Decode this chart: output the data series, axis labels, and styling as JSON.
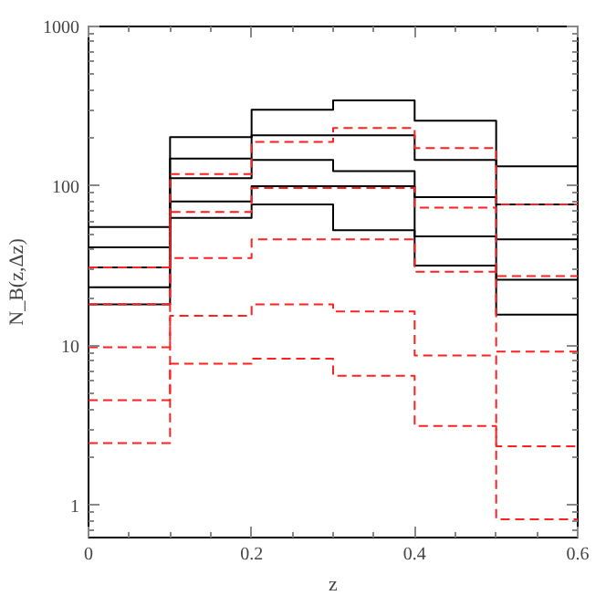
{
  "chart_data": {
    "type": "step",
    "xlabel": "z",
    "ylabel": "N_B(z,Δz)",
    "x": [
      0,
      0.1,
      0.2,
      0.3,
      0.4,
      0.5,
      0.6
    ],
    "xlim": [
      0,
      0.6
    ],
    "xticks": [
      0,
      0.2,
      0.4,
      0.6
    ],
    "ylim": [
      0.63,
      1000
    ],
    "yticks": [
      1,
      10,
      100,
      1000
    ],
    "log": true,
    "grid": false,
    "series": [
      {
        "color": "#000000",
        "line_style": "solid",
        "values": [
          55.4,
          203,
          301,
          344,
          257,
          133,
          133
        ]
      },
      {
        "color": "#000000",
        "line_style": "solid",
        "values": [
          41.4,
          149,
          208,
          208,
          146,
          76.7,
          76.7
        ]
      },
      {
        "color": "#000000",
        "line_style": "solid",
        "values": [
          31,
          112,
          146,
          124,
          85.3,
          46.4,
          46.4
        ]
      },
      {
        "color": "#000000",
        "line_style": "solid",
        "values": [
          23.3,
          80.3,
          100,
          100,
          48.5,
          25.9,
          25.9
        ]
      },
      {
        "color": "#000000",
        "line_style": "solid",
        "values": [
          18.2,
          63.3,
          76.7,
          53,
          31.8,
          15.7,
          15.7
        ]
      },
      {
        "color": "#ff2020",
        "line_style": "dashed",
        "values": [
          31,
          119,
          189,
          231,
          173,
          76.7,
          76.7
        ]
      },
      {
        "color": "#ff2020",
        "line_style": "dashed",
        "values": [
          18.2,
          69,
          97.4,
          97.4,
          73.4,
          27.3,
          27.3
        ]
      },
      {
        "color": "#ff2020",
        "line_style": "dashed",
        "values": [
          9.8,
          35.5,
          46.4,
          46.4,
          29.1,
          9.2,
          9.2
        ]
      },
      {
        "color": "#ff2020",
        "line_style": "dashed",
        "values": [
          4.56,
          15.4,
          18.2,
          16.4,
          8.7,
          2.35,
          2.35
        ]
      },
      {
        "color": "#ff2020",
        "line_style": "dashed",
        "values": [
          2.46,
          7.74,
          8.31,
          6.49,
          3.15,
          0.82,
          0.82
        ]
      }
    ]
  }
}
